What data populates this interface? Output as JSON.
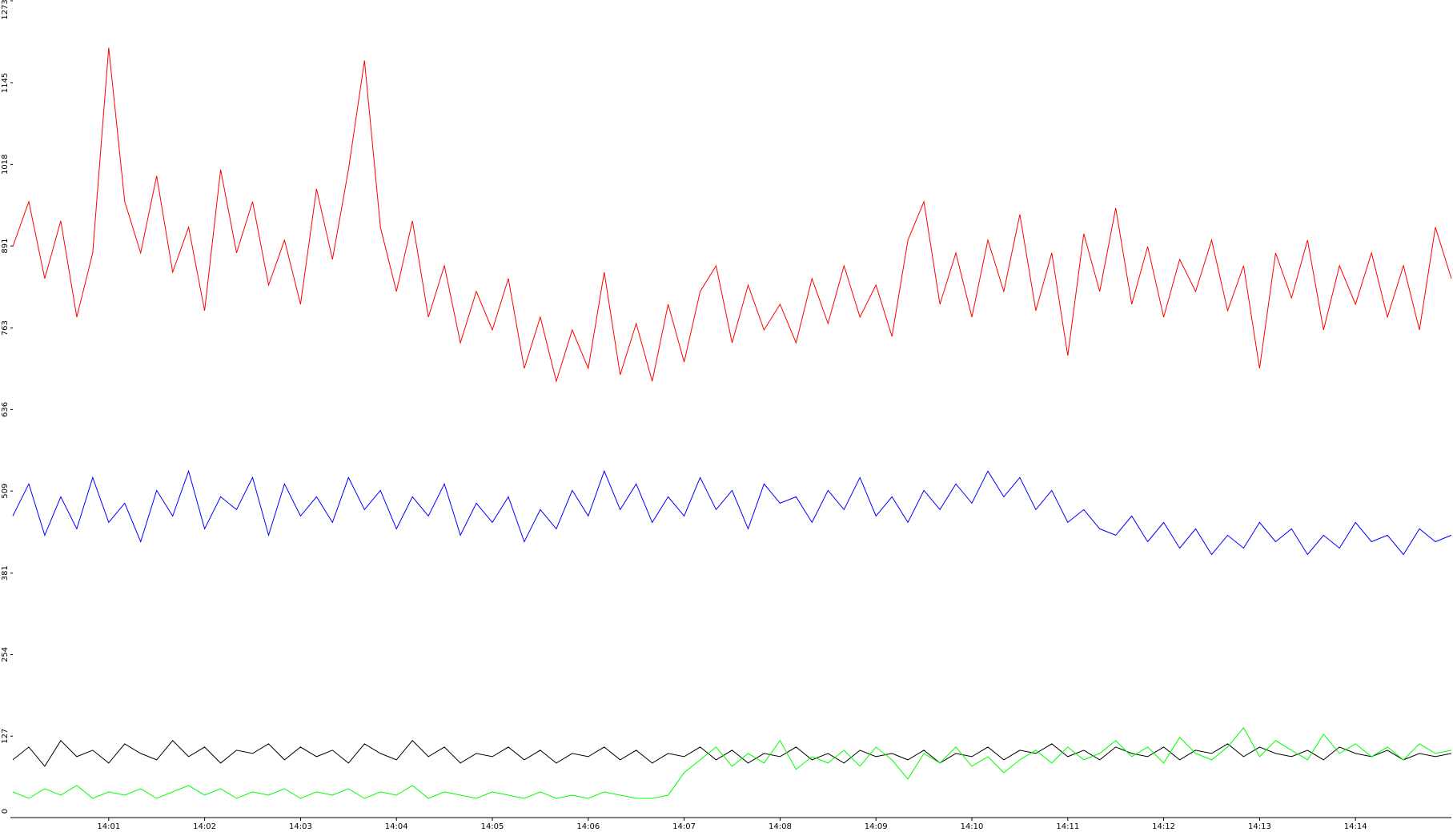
{
  "chart_data": {
    "type": "line",
    "categories": [
      null,
      null,
      null,
      null,
      null,
      null,
      "14:01",
      null,
      null,
      null,
      null,
      null,
      "14:02",
      null,
      null,
      null,
      null,
      null,
      "14:03",
      null,
      null,
      null,
      null,
      null,
      "14:04",
      null,
      null,
      null,
      null,
      null,
      "14:05",
      null,
      null,
      null,
      null,
      null,
      "14:06",
      null,
      null,
      null,
      null,
      null,
      "14:07",
      null,
      null,
      null,
      null,
      null,
      "14:08",
      null,
      null,
      null,
      null,
      null,
      "14:09",
      null,
      null,
      null,
      null,
      null,
      "14:10",
      null,
      null,
      null,
      null,
      null,
      "14:11",
      null,
      null,
      null,
      null,
      null,
      "14:12",
      null,
      null,
      null,
      null,
      null,
      "14:13",
      null,
      null,
      null,
      null,
      null,
      "14:14",
      null,
      null,
      null,
      null,
      null,
      null
    ],
    "series": [
      {
        "color": "#ff0000",
        "values": [
          890,
          960,
          840,
          930,
          780,
          880,
          1200,
          960,
          880,
          1000,
          850,
          920,
          790,
          1010,
          880,
          960,
          830,
          900,
          800,
          980,
          870,
          1010,
          1180,
          920,
          820,
          930,
          780,
          860,
          740,
          820,
          760,
          840,
          700,
          780,
          680,
          760,
          700,
          850,
          690,
          770,
          680,
          800,
          710,
          820,
          860,
          740,
          830,
          760,
          800,
          740,
          840,
          770,
          860,
          780,
          830,
          750,
          900,
          960,
          800,
          880,
          780,
          900,
          820,
          940,
          790,
          880,
          720,
          910,
          820,
          950,
          800,
          890,
          780,
          870,
          820,
          900,
          790,
          860,
          700,
          880,
          810,
          900,
          760,
          860,
          800,
          880,
          780,
          860,
          760,
          920,
          840
        ]
      },
      {
        "color": "#0000ff",
        "values": [
          470,
          520,
          440,
          500,
          450,
          530,
          460,
          490,
          430,
          510,
          470,
          540,
          450,
          500,
          480,
          530,
          440,
          520,
          470,
          500,
          460,
          530,
          480,
          510,
          450,
          500,
          470,
          520,
          440,
          490,
          460,
          500,
          430,
          480,
          450,
          510,
          470,
          540,
          480,
          520,
          460,
          500,
          470,
          530,
          480,
          510,
          450,
          520,
          490,
          500,
          460,
          510,
          480,
          530,
          470,
          500,
          460,
          510,
          480,
          520,
          490,
          540,
          500,
          530,
          480,
          510,
          460,
          480,
          450,
          440,
          470,
          430,
          460,
          420,
          450,
          410,
          440,
          420,
          460,
          430,
          450,
          410,
          440,
          420,
          460,
          430,
          440,
          410,
          450,
          430,
          440
        ]
      },
      {
        "color": "#000000",
        "values": [
          90,
          110,
          80,
          120,
          95,
          105,
          85,
          115,
          100,
          90,
          120,
          95,
          110,
          85,
          105,
          100,
          115,
          90,
          110,
          95,
          105,
          85,
          115,
          100,
          90,
          120,
          95,
          110,
          85,
          100,
          95,
          110,
          90,
          105,
          85,
          100,
          95,
          110,
          90,
          105,
          85,
          100,
          95,
          110,
          90,
          105,
          85,
          100,
          95,
          110,
          90,
          100,
          85,
          105,
          95,
          100,
          90,
          105,
          85,
          100,
          95,
          110,
          90,
          105,
          100,
          115,
          95,
          105,
          90,
          110,
          100,
          95,
          110,
          90,
          105,
          100,
          115,
          95,
          110,
          100,
          95,
          105,
          90,
          110,
          100,
          95,
          105,
          90,
          100,
          95,
          100
        ]
      },
      {
        "color": "#00ff00",
        "values": [
          40,
          30,
          45,
          35,
          50,
          30,
          40,
          35,
          45,
          30,
          40,
          50,
          35,
          45,
          30,
          40,
          35,
          45,
          30,
          40,
          35,
          45,
          30,
          40,
          35,
          50,
          30,
          40,
          35,
          30,
          40,
          35,
          30,
          40,
          30,
          35,
          30,
          40,
          35,
          30,
          30,
          35,
          70,
          90,
          110,
          80,
          100,
          85,
          120,
          75,
          95,
          85,
          105,
          80,
          110,
          90,
          60,
          100,
          85,
          110,
          80,
          95,
          70,
          90,
          105,
          85,
          110,
          90,
          100,
          120,
          95,
          110,
          85,
          125,
          100,
          90,
          110,
          140,
          95,
          120,
          105,
          90,
          130,
          100,
          115,
          95,
          110,
          90,
          115,
          100,
          105
        ]
      }
    ],
    "ylim": [
      0,
      1273
    ],
    "yticks": [
      0,
      127,
      254,
      381,
      509,
      636,
      763,
      891,
      1018,
      1145,
      1273
    ]
  }
}
